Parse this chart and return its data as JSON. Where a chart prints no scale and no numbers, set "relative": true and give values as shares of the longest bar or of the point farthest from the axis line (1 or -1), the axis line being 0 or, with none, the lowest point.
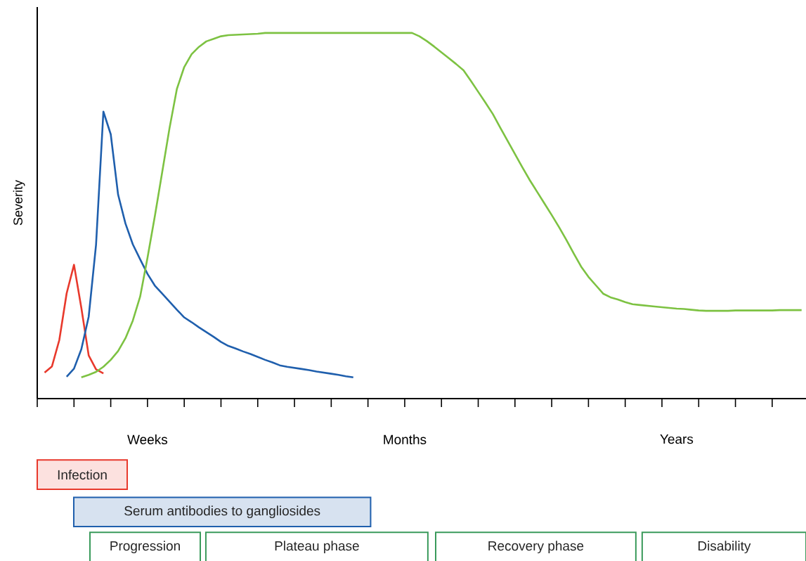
{
  "chart_data": {
    "type": "line",
    "relative": true,
    "ylabel": "Severity",
    "categories": [
      null,
      null,
      null,
      null,
      null,
      null,
      null,
      null,
      null,
      null,
      null,
      null,
      null,
      null,
      null,
      "Weeks",
      null,
      null,
      null,
      null,
      null,
      null,
      null,
      null,
      null,
      null,
      null,
      null,
      null,
      null,
      null,
      null,
      null,
      null,
      null,
      null,
      null,
      null,
      null,
      null,
      null,
      null,
      null,
      null,
      null,
      null,
      null,
      null,
      null,
      null,
      "Months",
      null,
      null,
      null,
      null,
      null,
      null,
      null,
      null,
      null,
      null,
      null,
      null,
      null,
      null,
      null,
      null,
      null,
      null,
      null,
      null,
      null,
      null,
      null,
      null,
      null,
      null,
      null,
      null,
      null,
      null,
      null,
      null,
      null,
      null,
      null,
      null,
      "Years",
      null,
      null,
      null,
      null,
      null,
      null,
      null,
      null,
      null,
      null,
      null,
      null,
      null,
      null,
      null,
      null,
      null
    ],
    "series": [
      {
        "color": "#e8392c",
        "values": [
          null,
          0.071,
          0.088,
          0.16,
          0.288,
          0.366,
          0.248,
          0.118,
          0.08,
          0.069,
          null,
          null,
          null,
          null,
          null,
          null,
          null,
          null,
          null,
          null,
          null,
          null,
          null,
          null,
          null,
          null,
          null,
          null,
          null,
          null,
          null,
          null,
          null,
          null,
          null,
          null,
          null,
          null,
          null,
          null,
          null,
          null,
          null,
          null,
          null,
          null,
          null,
          null,
          null,
          null,
          null,
          null,
          null,
          null,
          null,
          null,
          null,
          null,
          null,
          null,
          null,
          null,
          null,
          null,
          null,
          null,
          null,
          null,
          null,
          null,
          null,
          null,
          null,
          null,
          null,
          null,
          null,
          null,
          null,
          null,
          null,
          null,
          null,
          null,
          null,
          null,
          null,
          null,
          null,
          null,
          null,
          null,
          null,
          null,
          null,
          null,
          null,
          null,
          null,
          null,
          null,
          null,
          null,
          null,
          null
        ]
      },
      {
        "color": "#1f5fad",
        "values": [
          null,
          null,
          null,
          null,
          0.06,
          0.082,
          0.135,
          0.224,
          0.421,
          0.785,
          0.723,
          0.558,
          0.479,
          0.422,
          0.381,
          0.341,
          0.309,
          0.287,
          0.265,
          0.243,
          0.222,
          0.209,
          0.195,
          0.182,
          0.169,
          0.155,
          0.144,
          0.137,
          0.129,
          0.122,
          0.114,
          0.106,
          0.099,
          0.091,
          0.087,
          0.084,
          0.081,
          0.078,
          0.074,
          0.071,
          0.068,
          0.065,
          0.061,
          0.058,
          null,
          null,
          null,
          null,
          null,
          null,
          null,
          null,
          null,
          null,
          null,
          null,
          null,
          null,
          null,
          null,
          null,
          null,
          null,
          null,
          null,
          null,
          null,
          null,
          null,
          null,
          null,
          null,
          null,
          null,
          null,
          null,
          null,
          null,
          null,
          null,
          null,
          null,
          null,
          null,
          null,
          null,
          null,
          null,
          null,
          null,
          null,
          null,
          null,
          null,
          null,
          null,
          null,
          null,
          null,
          null,
          null,
          null,
          null,
          null,
          null
        ]
      },
      {
        "color": "#7dc242",
        "values": [
          null,
          null,
          null,
          null,
          null,
          null,
          0.058,
          0.065,
          0.073,
          0.087,
          0.106,
          0.13,
          0.165,
          0.213,
          0.279,
          0.385,
          0.499,
          0.619,
          0.74,
          0.847,
          0.907,
          0.942,
          0.962,
          0.977,
          0.984,
          0.991,
          0.994,
          0.995,
          0.996,
          0.997,
          0.998,
          1.0,
          1.0,
          1.0,
          1.0,
          1.0,
          1.0,
          1.0,
          1.0,
          1.0,
          1.0,
          1.0,
          1.0,
          1.0,
          1.0,
          1.0,
          1.0,
          1.0,
          1.0,
          1.0,
          1.0,
          1.0,
          0.991,
          0.978,
          0.963,
          0.947,
          0.931,
          0.915,
          0.898,
          0.869,
          0.839,
          0.809,
          0.778,
          0.741,
          0.705,
          0.669,
          0.633,
          0.598,
          0.566,
          0.534,
          0.502,
          0.469,
          0.434,
          0.397,
          0.361,
          0.333,
          0.31,
          0.287,
          0.277,
          0.271,
          0.264,
          0.258,
          0.256,
          0.254,
          0.252,
          0.25,
          0.248,
          0.246,
          0.245,
          0.243,
          0.241,
          0.24,
          0.24,
          0.24,
          0.24,
          0.241,
          0.241,
          0.241,
          0.241,
          0.241,
          0.241,
          0.242,
          0.242,
          0.242,
          0.242
        ]
      }
    ],
    "annotations": [
      "Infection",
      "Serum antibodies to gangliosides",
      "Progression",
      "Plateau phase",
      "Recovery phase",
      "Disability"
    ]
  }
}
